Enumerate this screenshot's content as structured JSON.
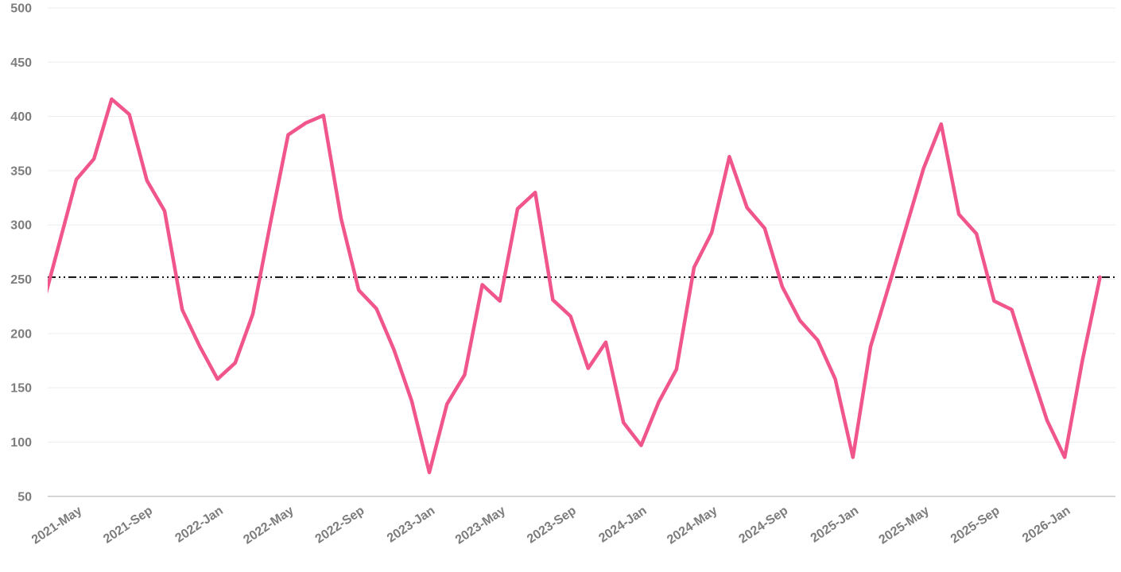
{
  "chart_data": {
    "type": "line",
    "title": "",
    "xlabel": "",
    "ylabel": "",
    "grid": true,
    "legend": "none",
    "ylim": [
      50,
      500
    ],
    "y_ticks": [
      50,
      100,
      150,
      200,
      250,
      300,
      350,
      400,
      450,
      500
    ],
    "x_tick_labels": [
      "2021-May",
      "2021-Sep",
      "2022-Jan",
      "2022-May",
      "2022-Sep",
      "2023-Jan",
      "2023-May",
      "2023-Sep",
      "2024-Jan",
      "2024-May",
      "2024-Sep",
      "2025-Jan",
      "2025-May",
      "2025-Sep",
      "2026-Jan"
    ],
    "x_tick_first_point_index": 2,
    "x_tick_every": 4,
    "x": [
      "2021-Mar",
      "2021-Apr",
      "2021-May",
      "2021-Jun",
      "2021-Jul",
      "2021-Aug",
      "2021-Sep",
      "2021-Oct",
      "2021-Nov",
      "2021-Dec",
      "2022-Jan",
      "2022-Feb",
      "2022-Mar",
      "2022-Apr",
      "2022-May",
      "2022-Jun",
      "2022-Jul",
      "2022-Aug",
      "2022-Sep",
      "2022-Oct",
      "2022-Nov",
      "2022-Dec",
      "2023-Jan",
      "2023-Feb",
      "2023-Mar",
      "2023-Apr",
      "2023-May",
      "2023-Jun",
      "2023-Jul",
      "2023-Aug",
      "2023-Sep",
      "2023-Oct",
      "2023-Nov",
      "2023-Dec",
      "2024-Jan",
      "2024-Feb",
      "2024-Mar",
      "2024-Apr",
      "2024-May",
      "2024-Jun",
      "2024-Jul",
      "2024-Aug",
      "2024-Sep",
      "2024-Oct",
      "2024-Nov",
      "2024-Dec",
      "2025-Jan",
      "2025-Feb",
      "2025-Mar",
      "2025-Apr",
      "2025-May",
      "2025-Jun",
      "2025-Jul",
      "2025-Aug",
      "2025-Sep",
      "2025-Oct",
      "2025-Nov",
      "2025-Dec",
      "2026-Jan",
      "2026-Feb",
      "2026-Mar"
    ],
    "values": [
      220,
      281,
      342,
      361,
      416,
      402,
      341,
      313,
      222,
      188,
      158,
      173,
      218,
      302,
      383,
      394,
      401,
      306,
      240,
      223,
      185,
      138,
      72,
      135,
      162,
      245,
      230,
      315,
      330,
      231,
      216,
      168,
      192,
      118,
      97,
      137,
      167,
      261,
      293,
      363,
      316,
      297,
      243,
      212,
      194,
      158,
      86,
      188,
      242,
      297,
      352,
      393,
      310,
      292,
      230,
      222,
      170,
      120,
      86,
      175,
      252
    ],
    "reference_line": {
      "value": 252,
      "style": "dash-dot",
      "color": "#0a0a0a"
    },
    "line_color": "#f0558c",
    "gridline_color": "#ededed",
    "axis_line_color": "#c8c8c8",
    "tick_label_color": "#7d7d7d",
    "background_color": "#ffffff"
  }
}
